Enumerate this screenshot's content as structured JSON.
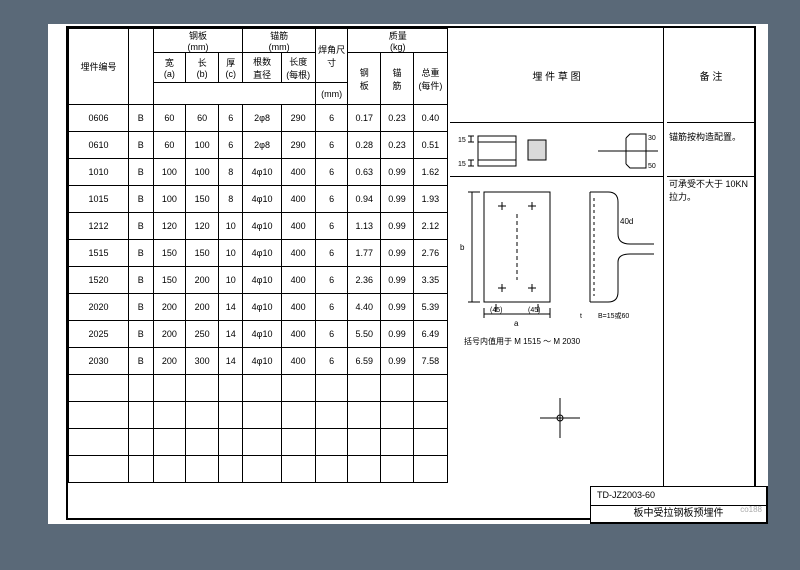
{
  "drawing": {
    "code": "TD-JZ2003-60",
    "title": "板中受拉钢板预埋件"
  },
  "headers": {
    "item_no": "埋件编号",
    "plate_group": "钢板\n(mm)",
    "anchor_group": "锚筋\n(mm)",
    "weld": "焊角尺寸",
    "weight_group": "质量\n(kg)",
    "diagram": "埋 件 草   图",
    "remarks": "备   注",
    "a": "宽\n(a)",
    "b": "长\n(b)",
    "c": "厚\n(c)",
    "n_dia": "根数\n直径",
    "len": "长度\n(每根)",
    "mm": "(mm)",
    "w_plate": "钢\n板",
    "w_anchor": "锚\n筋",
    "w_total": "总重\n(每件)"
  },
  "rows": [
    {
      "no": "0606",
      "t": "B",
      "a": "60",
      "b": "60",
      "c": "6",
      "nd": "2φ8",
      "l": "290",
      "wl": "6",
      "w1": "0.17",
      "w2": "0.23",
      "w3": "0.40"
    },
    {
      "no": "0610",
      "t": "B",
      "a": "60",
      "b": "100",
      "c": "6",
      "nd": "2φ8",
      "l": "290",
      "wl": "6",
      "w1": "0.28",
      "w2": "0.23",
      "w3": "0.51"
    },
    {
      "no": "1010",
      "t": "B",
      "a": "100",
      "b": "100",
      "c": "8",
      "nd": "4φ10",
      "l": "400",
      "wl": "6",
      "w1": "0.63",
      "w2": "0.99",
      "w3": "1.62"
    },
    {
      "no": "1015",
      "t": "B",
      "a": "100",
      "b": "150",
      "c": "8",
      "nd": "4φ10",
      "l": "400",
      "wl": "6",
      "w1": "0.94",
      "w2": "0.99",
      "w3": "1.93"
    },
    {
      "no": "1212",
      "t": "B",
      "a": "120",
      "b": "120",
      "c": "10",
      "nd": "4φ10",
      "l": "400",
      "wl": "6",
      "w1": "1.13",
      "w2": "0.99",
      "w3": "2.12"
    },
    {
      "no": "1515",
      "t": "B",
      "a": "150",
      "b": "150",
      "c": "10",
      "nd": "4φ10",
      "l": "400",
      "wl": "6",
      "w1": "1.77",
      "w2": "0.99",
      "w3": "2.76"
    },
    {
      "no": "1520",
      "t": "B",
      "a": "150",
      "b": "200",
      "c": "10",
      "nd": "4φ10",
      "l": "400",
      "wl": "6",
      "w1": "2.36",
      "w2": "0.99",
      "w3": "3.35"
    },
    {
      "no": "2020",
      "t": "B",
      "a": "200",
      "b": "200",
      "c": "14",
      "nd": "4φ10",
      "l": "400",
      "wl": "6",
      "w1": "4.40",
      "w2": "0.99",
      "w3": "5.39"
    },
    {
      "no": "2025",
      "t": "B",
      "a": "200",
      "b": "250",
      "c": "14",
      "nd": "4φ10",
      "l": "400",
      "wl": "6",
      "w1": "5.50",
      "w2": "0.99",
      "w3": "6.49"
    },
    {
      "no": "2030",
      "t": "B",
      "a": "200",
      "b": "300",
      "c": "14",
      "nd": "4φ10",
      "l": "400",
      "wl": "6",
      "w1": "6.59",
      "w2": "0.99",
      "w3": "7.58"
    }
  ],
  "notes": [
    {
      "row_index": 0,
      "text": "锚筋按构造配置。"
    },
    {
      "row_index": 2,
      "text": "可承受不大于 10KN 拉力。"
    }
  ],
  "diag_labels": {
    "d15a": "15",
    "d15b": "15",
    "d30": "30",
    "d50": "50",
    "d45a": "45",
    "d45b": "45",
    "d40d": "40d",
    "axis_a": "a",
    "axis_b": "b",
    "note_range": "括号内值用于 M 1515 ～ M 2030",
    "bw": "B=15或60",
    "t": "t"
  },
  "style": {
    "ink": "#000000",
    "bg": "#5a6978",
    "paper": "#ffffff",
    "font_size_base": 9,
    "font_size_header": 10,
    "line_w": 1,
    "line_w_heavy": 2
  }
}
